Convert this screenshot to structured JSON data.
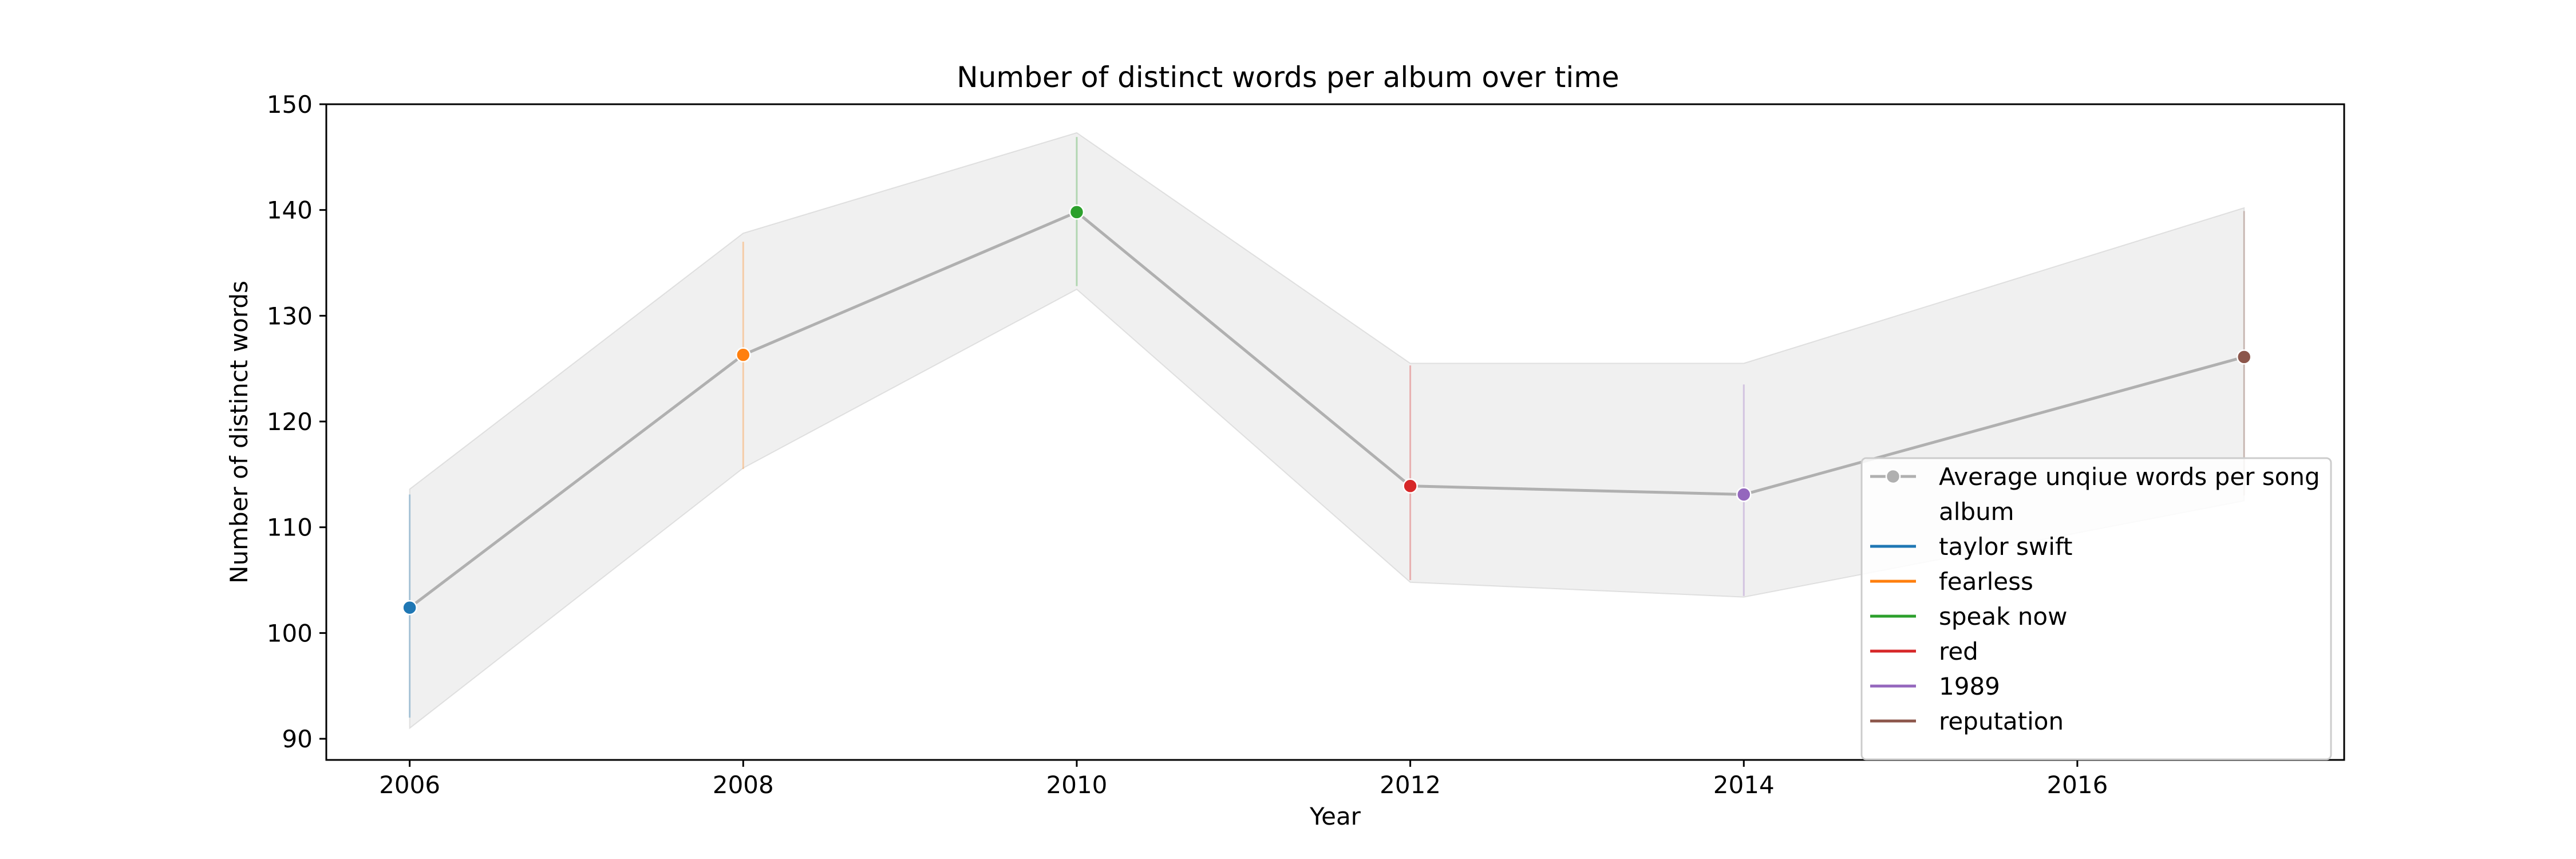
{
  "chart_data": {
    "type": "line",
    "title": "Number of distinct words per album over time",
    "xlabel": "Year",
    "ylabel": "Number of distinct words",
    "xlim": [
      2005.5,
      2017.6
    ],
    "ylim": [
      88,
      150
    ],
    "xticks": [
      2006,
      2008,
      2010,
      2012,
      2014,
      2016
    ],
    "yticks": [
      90,
      100,
      110,
      120,
      130,
      140,
      150
    ],
    "grid": false,
    "legend_position": "lower-right",
    "series": [
      {
        "name": "Average unqiue words per song",
        "color": "#b0b0b0",
        "x": [
          2006,
          2008,
          2010,
          2012,
          2014,
          2017
        ],
        "y": [
          102.4,
          126.3,
          139.8,
          113.9,
          113.1,
          126.1
        ],
        "ci_low": [
          91,
          115.6,
          132.5,
          104.8,
          103.4,
          112.5
        ],
        "ci_high": [
          113.6,
          137.8,
          147.3,
          125.5,
          125.5,
          140.2
        ]
      }
    ],
    "points": [
      {
        "album": "taylor swift",
        "x": 2006,
        "y": 102.4,
        "err_low": 92.0,
        "err_high": 113.1,
        "color": "#1f77b4"
      },
      {
        "album": "fearless",
        "x": 2008,
        "y": 126.3,
        "err_low": 115.5,
        "err_high": 137.0,
        "color": "#ff7f0e"
      },
      {
        "album": "speak now",
        "x": 2010,
        "y": 139.8,
        "err_low": 132.8,
        "err_high": 146.9,
        "color": "#2ca02c"
      },
      {
        "album": "red",
        "x": 2012,
        "y": 113.9,
        "err_low": 105.0,
        "err_high": 125.3,
        "color": "#d62728"
      },
      {
        "album": "1989",
        "x": 2014,
        "y": 113.1,
        "err_low": 103.5,
        "err_high": 123.5,
        "color": "#9467bd"
      },
      {
        "album": "reputation",
        "x": 2017,
        "y": 126.1,
        "err_low": 113.0,
        "err_high": 139.9,
        "color": "#8c564b"
      }
    ],
    "legend": {
      "series_label": "Average unqiue words per song",
      "group_title": "album",
      "entries": [
        {
          "label": "taylor swift",
          "color": "#1f77b4"
        },
        {
          "label": "fearless",
          "color": "#ff7f0e"
        },
        {
          "label": "speak now",
          "color": "#2ca02c"
        },
        {
          "label": "red",
          "color": "#d62728"
        },
        {
          "label": "1989",
          "color": "#9467bd"
        },
        {
          "label": "reputation",
          "color": "#8c564b"
        }
      ]
    }
  }
}
